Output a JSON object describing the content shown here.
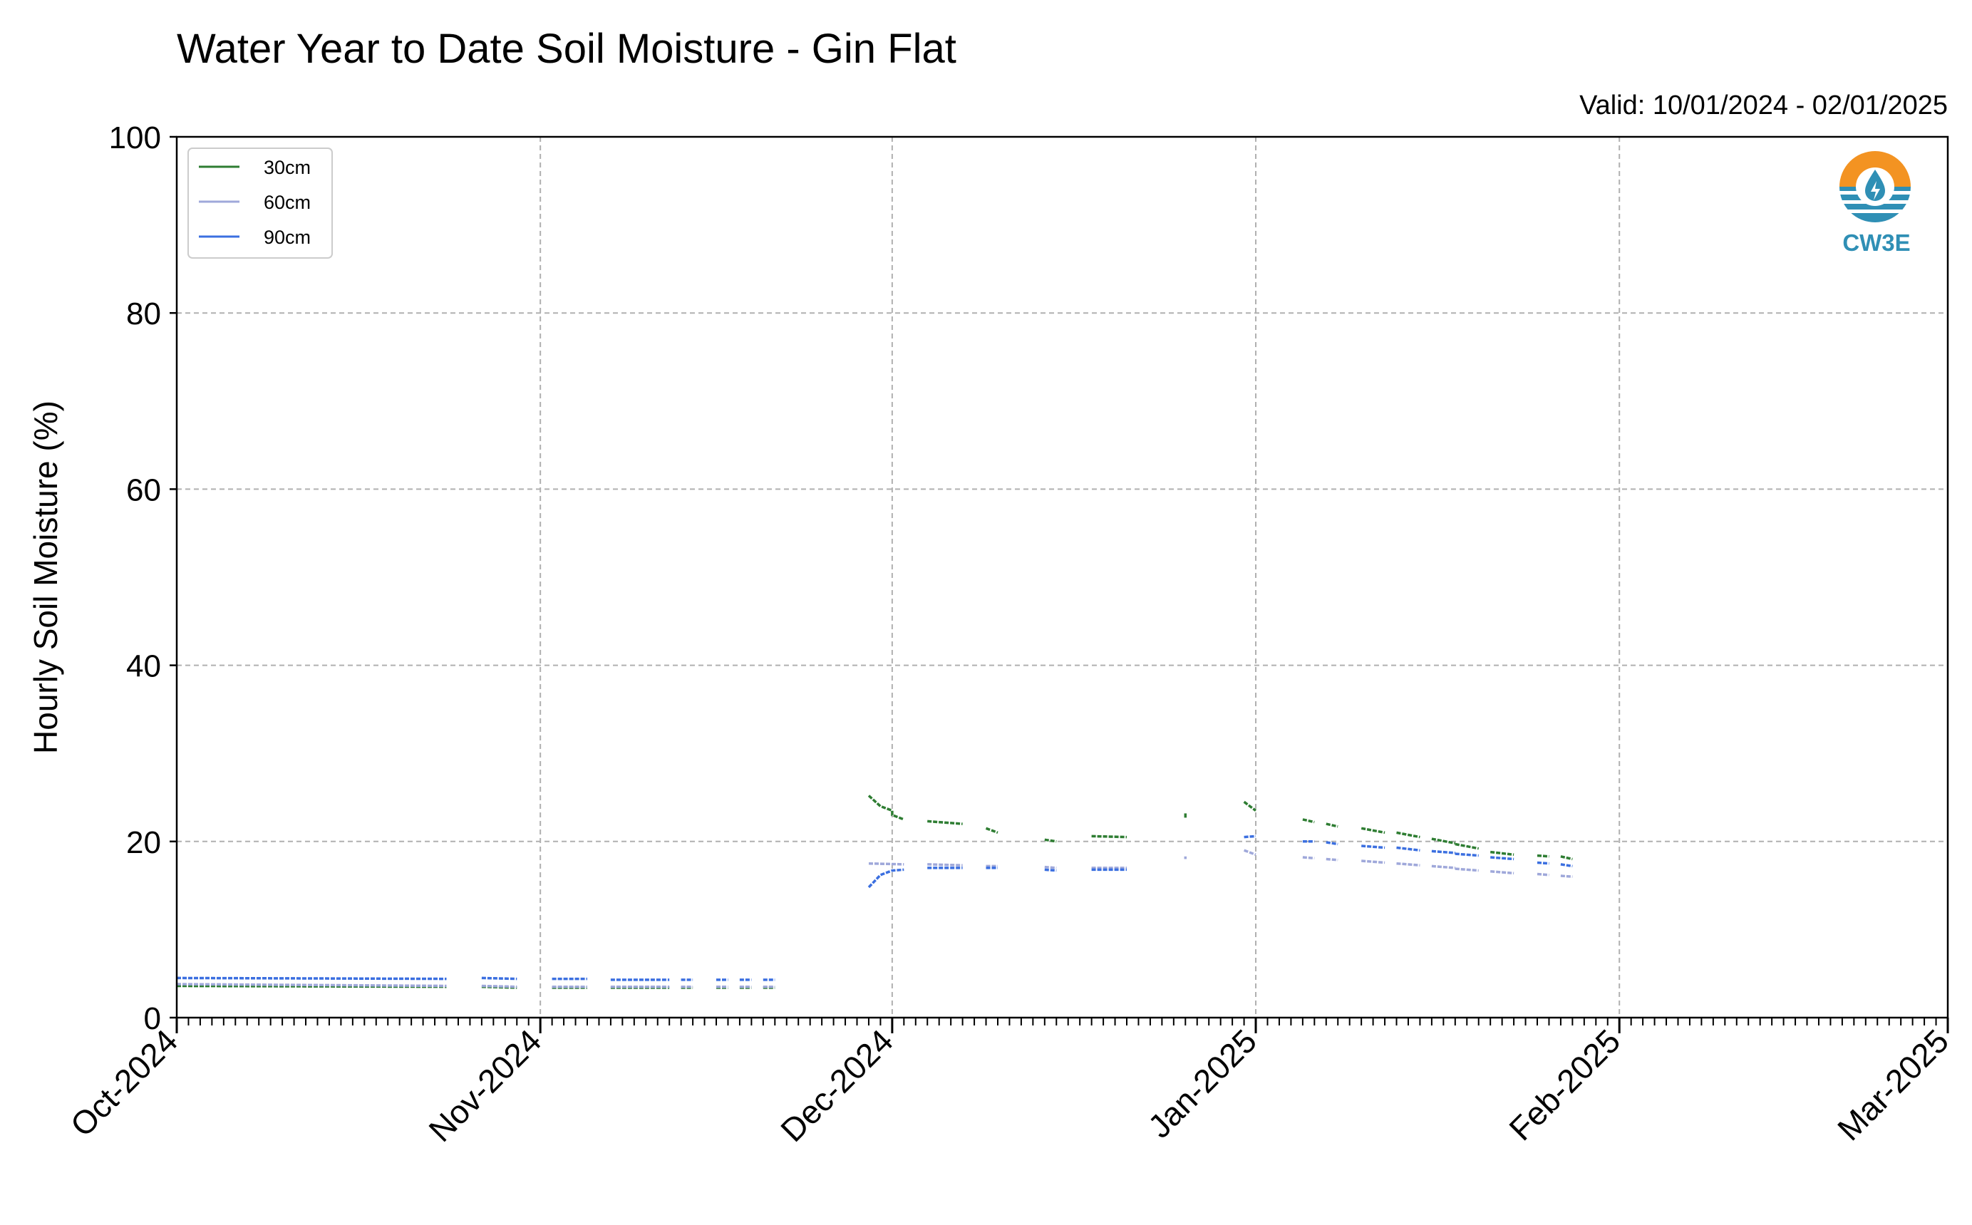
{
  "chart_data": {
    "type": "line",
    "title": "Water Year to Date Soil Moisture - Gin Flat",
    "valid_text": "Valid: 10/01/2024 - 02/01/2025",
    "ylabel": "Hourly Soil Moisture (%)",
    "xlabel": "",
    "ylim": [
      0,
      100
    ],
    "y_ticks": [
      "0",
      "20",
      "40",
      "60",
      "80",
      "100"
    ],
    "x_range": [
      "2024-10-01",
      "2025-03-01"
    ],
    "x_ticks": [
      "Oct-2024",
      "Nov-2024",
      "Dec-2024",
      "Jan-2025",
      "Feb-2025",
      "Mar-2025"
    ],
    "grid": true,
    "legend_position": "top-left",
    "logo_text": "CW3E",
    "series": [
      {
        "name": "30cm",
        "color": "#2e7d32",
        "segments": [
          [
            [
              "2024-10-01",
              3.6
            ],
            [
              "2024-10-24",
              3.5
            ]
          ],
          [
            [
              "2024-10-27",
              3.5
            ],
            [
              "2024-10-30",
              3.4
            ]
          ],
          [
            [
              "2024-11-02",
              3.4
            ],
            [
              "2024-11-05",
              3.4
            ]
          ],
          [
            [
              "2024-11-07",
              3.4
            ],
            [
              "2024-11-12",
              3.4
            ]
          ],
          [
            [
              "2024-11-13",
              3.4
            ],
            [
              "2024-11-14",
              3.4
            ]
          ],
          [
            [
              "2024-11-16",
              3.4
            ],
            [
              "2024-11-17",
              3.4
            ]
          ],
          [
            [
              "2024-11-18",
              3.4
            ],
            [
              "2024-11-19",
              3.4
            ]
          ],
          [
            [
              "2024-11-20",
              3.4
            ],
            [
              "2024-11-21",
              3.4
            ]
          ],
          [
            [
              "2024-11-29",
              25.2
            ],
            [
              "2024-11-30",
              24.0
            ],
            [
              "2024-12-01",
              23.5
            ],
            [
              "2024-12-01",
              23.0
            ],
            [
              "2024-12-02",
              22.5
            ]
          ],
          [
            [
              "2024-12-04",
              22.3
            ],
            [
              "2024-12-07",
              22.0
            ]
          ],
          [
            [
              "2024-12-09",
              21.5
            ],
            [
              "2024-12-10",
              21.0
            ]
          ],
          [
            [
              "2024-12-14",
              20.2
            ],
            [
              "2024-12-15",
              20.0
            ]
          ],
          [
            [
              "2024-12-18",
              20.6
            ],
            [
              "2024-12-21",
              20.5
            ]
          ],
          [
            [
              "2024-12-26",
              22.7
            ],
            [
              "2024-12-26",
              23.2
            ]
          ],
          [
            [
              "2024-12-31",
              24.5
            ],
            [
              "2025-01-01",
              23.5
            ]
          ],
          [
            [
              "2025-01-05",
              22.5
            ],
            [
              "2025-01-06",
              22.2
            ]
          ],
          [
            [
              "2025-01-07",
              22.0
            ],
            [
              "2025-01-08",
              21.7
            ]
          ],
          [
            [
              "2025-01-10",
              21.5
            ],
            [
              "2025-01-12",
              21.0
            ]
          ],
          [
            [
              "2025-01-13",
              21.0
            ],
            [
              "2025-01-15",
              20.5
            ]
          ],
          [
            [
              "2025-01-16",
              20.3
            ],
            [
              "2025-01-18",
              19.8
            ]
          ],
          [
            [
              "2025-01-18",
              19.7
            ],
            [
              "2025-01-20",
              19.2
            ]
          ],
          [
            [
              "2025-01-21",
              18.8
            ],
            [
              "2025-01-23",
              18.5
            ]
          ],
          [
            [
              "2025-01-25",
              18.4
            ],
            [
              "2025-01-26",
              18.3
            ]
          ],
          [
            [
              "2025-01-27",
              18.3
            ],
            [
              "2025-01-28",
              18.0
            ]
          ]
        ]
      },
      {
        "name": "60cm",
        "color": "#9fa8da",
        "segments": [
          [
            [
              "2024-10-01",
              3.8
            ],
            [
              "2024-10-24",
              3.6
            ]
          ],
          [
            [
              "2024-10-27",
              3.6
            ],
            [
              "2024-10-30",
              3.5
            ]
          ],
          [
            [
              "2024-11-02",
              3.5
            ],
            [
              "2024-11-05",
              3.5
            ]
          ],
          [
            [
              "2024-11-07",
              3.5
            ],
            [
              "2024-11-12",
              3.5
            ]
          ],
          [
            [
              "2024-11-13",
              3.5
            ],
            [
              "2024-11-14",
              3.5
            ]
          ],
          [
            [
              "2024-11-16",
              3.5
            ],
            [
              "2024-11-17",
              3.5
            ]
          ],
          [
            [
              "2024-11-18",
              3.5
            ],
            [
              "2024-11-19",
              3.5
            ]
          ],
          [
            [
              "2024-11-20",
              3.5
            ],
            [
              "2024-11-21",
              3.5
            ]
          ],
          [
            [
              "2024-11-29",
              17.5
            ],
            [
              "2024-12-02",
              17.4
            ]
          ],
          [
            [
              "2024-12-04",
              17.4
            ],
            [
              "2024-12-07",
              17.3
            ]
          ],
          [
            [
              "2024-12-09",
              17.2
            ],
            [
              "2024-12-10",
              17.2
            ]
          ],
          [
            [
              "2024-12-14",
              17.1
            ],
            [
              "2024-12-15",
              17.0
            ]
          ],
          [
            [
              "2024-12-18",
              17.0
            ],
            [
              "2024-12-21",
              17.0
            ]
          ],
          [
            [
              "2024-12-26",
              18.0
            ],
            [
              "2024-12-26",
              18.3
            ]
          ],
          [
            [
              "2024-12-31",
              19.0
            ],
            [
              "2025-01-01",
              18.5
            ]
          ],
          [
            [
              "2025-01-05",
              18.2
            ],
            [
              "2025-01-06",
              18.1
            ]
          ],
          [
            [
              "2025-01-07",
              18.0
            ],
            [
              "2025-01-08",
              17.9
            ]
          ],
          [
            [
              "2025-01-10",
              17.8
            ],
            [
              "2025-01-12",
              17.6
            ]
          ],
          [
            [
              "2025-01-13",
              17.5
            ],
            [
              "2025-01-15",
              17.3
            ]
          ],
          [
            [
              "2025-01-16",
              17.2
            ],
            [
              "2025-01-18",
              17.0
            ]
          ],
          [
            [
              "2025-01-18",
              16.9
            ],
            [
              "2025-01-20",
              16.7
            ]
          ],
          [
            [
              "2025-01-21",
              16.6
            ],
            [
              "2025-01-23",
              16.4
            ]
          ],
          [
            [
              "2025-01-25",
              16.3
            ],
            [
              "2025-01-26",
              16.2
            ]
          ],
          [
            [
              "2025-01-27",
              16.1
            ],
            [
              "2025-01-28",
              16.0
            ]
          ]
        ]
      },
      {
        "name": "90cm",
        "color": "#3b6fe0",
        "segments": [
          [
            [
              "2024-10-01",
              4.5
            ],
            [
              "2024-10-24",
              4.4
            ]
          ],
          [
            [
              "2024-10-27",
              4.5
            ],
            [
              "2024-10-30",
              4.4
            ]
          ],
          [
            [
              "2024-11-02",
              4.4
            ],
            [
              "2024-11-05",
              4.4
            ]
          ],
          [
            [
              "2024-11-07",
              4.3
            ],
            [
              "2024-11-12",
              4.3
            ]
          ],
          [
            [
              "2024-11-13",
              4.3
            ],
            [
              "2024-11-14",
              4.3
            ]
          ],
          [
            [
              "2024-11-16",
              4.3
            ],
            [
              "2024-11-17",
              4.3
            ]
          ],
          [
            [
              "2024-11-18",
              4.3
            ],
            [
              "2024-11-19",
              4.3
            ]
          ],
          [
            [
              "2024-11-20",
              4.3
            ],
            [
              "2024-11-21",
              4.3
            ]
          ],
          [
            [
              "2024-11-29",
              14.8
            ],
            [
              "2024-11-30",
              16.2
            ],
            [
              "2024-12-01",
              16.7
            ],
            [
              "2024-12-02",
              16.8
            ]
          ],
          [
            [
              "2024-12-04",
              17.0
            ],
            [
              "2024-12-07",
              17.0
            ]
          ],
          [
            [
              "2024-12-09",
              17.0
            ],
            [
              "2024-12-10",
              17.0
            ]
          ],
          [
            [
              "2024-12-14",
              16.8
            ],
            [
              "2024-12-15",
              16.7
            ]
          ],
          [
            [
              "2024-12-18",
              16.8
            ],
            [
              "2024-12-21",
              16.8
            ]
          ],
          [
            [
              "2024-12-31",
              20.5
            ],
            [
              "2025-01-01",
              20.6
            ]
          ],
          [
            [
              "2025-01-05",
              20.0
            ],
            [
              "2025-01-06",
              20.0
            ]
          ],
          [
            [
              "2025-01-07",
              19.9
            ],
            [
              "2025-01-08",
              19.7
            ]
          ],
          [
            [
              "2025-01-10",
              19.5
            ],
            [
              "2025-01-12",
              19.3
            ]
          ],
          [
            [
              "2025-01-13",
              19.3
            ],
            [
              "2025-01-15",
              19.0
            ]
          ],
          [
            [
              "2025-01-16",
              18.9
            ],
            [
              "2025-01-18",
              18.7
            ]
          ],
          [
            [
              "2025-01-18",
              18.6
            ],
            [
              "2025-01-20",
              18.4
            ]
          ],
          [
            [
              "2025-01-21",
              18.2
            ],
            [
              "2025-01-23",
              18.0
            ]
          ],
          [
            [
              "2025-01-25",
              17.6
            ],
            [
              "2025-01-26",
              17.5
            ]
          ],
          [
            [
              "2025-01-27",
              17.4
            ],
            [
              "2025-01-28",
              17.2
            ]
          ]
        ]
      }
    ]
  }
}
